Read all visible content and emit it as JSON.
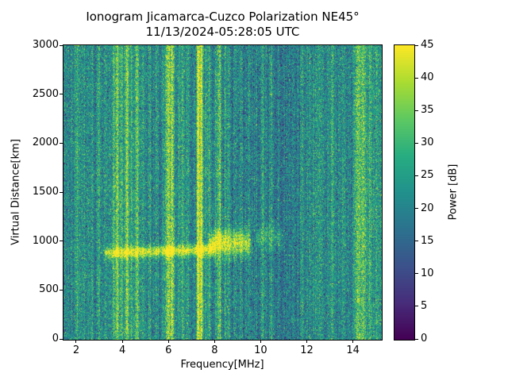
{
  "chart_data": {
    "type": "heatmap",
    "title": "Ionogram Jicamarca-Cuzco Polarization NE45°",
    "subtitle": "11/13/2024-05:28:05 UTC",
    "xlabel": "Frequency[MHz]",
    "ylabel": "Virtual Distance[km]",
    "colorbar_label": "Power [dB]",
    "xlim": [
      1.45,
      15.25
    ],
    "ylim": [
      0,
      3000
    ],
    "clim": [
      0,
      45
    ],
    "xticks": [
      2,
      4,
      6,
      8,
      10,
      12,
      14
    ],
    "yticks": [
      0,
      500,
      1000,
      1500,
      2000,
      2500,
      3000
    ],
    "colorbar_ticks": [
      0,
      5,
      10,
      15,
      20,
      25,
      30,
      35,
      40,
      45
    ],
    "colormap": "viridis",
    "colormap_stops": [
      "#440154",
      "#472d7b",
      "#3b528b",
      "#2c728e",
      "#21918c",
      "#27ad81",
      "#5ec962",
      "#aadc32",
      "#fde725"
    ],
    "background": {
      "mean_db": 20,
      "noise_std_db": 6,
      "column_jitter_db": 3.2
    },
    "rfi_lines": [
      {
        "freq_mhz": 2.05,
        "width_mhz": 0.05,
        "excess_db": 7
      },
      {
        "freq_mhz": 2.35,
        "width_mhz": 0.04,
        "excess_db": 4
      },
      {
        "freq_mhz": 2.7,
        "width_mhz": 0.04,
        "excess_db": 4
      },
      {
        "freq_mhz": 3.0,
        "width_mhz": 0.05,
        "excess_db": 6
      },
      {
        "freq_mhz": 3.3,
        "width_mhz": 0.04,
        "excess_db": 5
      },
      {
        "freq_mhz": 3.62,
        "width_mhz": 0.04,
        "excess_db": 8
      },
      {
        "freq_mhz": 3.78,
        "width_mhz": 0.06,
        "excess_db": 15
      },
      {
        "freq_mhz": 3.97,
        "width_mhz": 0.04,
        "excess_db": 9
      },
      {
        "freq_mhz": 4.2,
        "width_mhz": 0.06,
        "excess_db": 14
      },
      {
        "freq_mhz": 4.42,
        "width_mhz": 0.04,
        "excess_db": 7
      },
      {
        "freq_mhz": 4.65,
        "width_mhz": 0.05,
        "excess_db": 11
      },
      {
        "freq_mhz": 4.9,
        "width_mhz": 0.04,
        "excess_db": 6
      },
      {
        "freq_mhz": 5.2,
        "width_mhz": 0.04,
        "excess_db": 5
      },
      {
        "freq_mhz": 5.5,
        "width_mhz": 0.04,
        "excess_db": 5
      },
      {
        "freq_mhz": 5.75,
        "width_mhz": 0.04,
        "excess_db": 6
      },
      {
        "freq_mhz": 5.97,
        "width_mhz": 0.07,
        "excess_db": 18
      },
      {
        "freq_mhz": 6.17,
        "width_mhz": 0.07,
        "excess_db": 20
      },
      {
        "freq_mhz": 6.45,
        "width_mhz": 0.04,
        "excess_db": 6
      },
      {
        "freq_mhz": 6.62,
        "width_mhz": 0.05,
        "excess_db": 10
      },
      {
        "freq_mhz": 6.85,
        "width_mhz": 0.04,
        "excess_db": 5
      },
      {
        "freq_mhz": 7.3,
        "width_mhz": 0.05,
        "excess_db": 26
      },
      {
        "freq_mhz": 7.44,
        "width_mhz": 0.04,
        "excess_db": 22
      },
      {
        "freq_mhz": 7.62,
        "width_mhz": 0.04,
        "excess_db": 8
      },
      {
        "freq_mhz": 7.78,
        "width_mhz": 0.04,
        "excess_db": 9
      },
      {
        "freq_mhz": 8.05,
        "width_mhz": 0.04,
        "excess_db": 8
      },
      {
        "freq_mhz": 8.22,
        "width_mhz": 0.06,
        "excess_db": 16
      },
      {
        "freq_mhz": 8.45,
        "width_mhz": 0.04,
        "excess_db": 9
      },
      {
        "freq_mhz": 8.6,
        "width_mhz": 0.05,
        "excess_db": 10
      },
      {
        "freq_mhz": 8.9,
        "width_mhz": 0.04,
        "excess_db": 6
      },
      {
        "freq_mhz": 9.15,
        "width_mhz": 0.04,
        "excess_db": 5
      },
      {
        "freq_mhz": 9.5,
        "width_mhz": 0.04,
        "excess_db": 4
      },
      {
        "freq_mhz": 10.1,
        "width_mhz": 0.05,
        "excess_db": 5
      },
      {
        "freq_mhz": 10.45,
        "width_mhz": 0.05,
        "excess_db": 6
      },
      {
        "freq_mhz": 10.8,
        "width_mhz": 0.04,
        "excess_db": 4
      },
      {
        "freq_mhz": 11.25,
        "width_mhz": 0.04,
        "excess_db": 4
      },
      {
        "freq_mhz": 11.8,
        "width_mhz": 0.05,
        "excess_db": 5
      },
      {
        "freq_mhz": 12.15,
        "width_mhz": 0.04,
        "excess_db": 4
      },
      {
        "freq_mhz": 12.55,
        "width_mhz": 0.04,
        "excess_db": 4
      },
      {
        "freq_mhz": 13.1,
        "width_mhz": 0.05,
        "excess_db": 6
      },
      {
        "freq_mhz": 13.6,
        "width_mhz": 0.05,
        "excess_db": 6
      },
      {
        "freq_mhz": 14.2,
        "width_mhz": 0.09,
        "excess_db": 12
      },
      {
        "freq_mhz": 14.45,
        "width_mhz": 0.1,
        "excess_db": 13
      },
      {
        "freq_mhz": 14.75,
        "width_mhz": 0.05,
        "excess_db": 7
      },
      {
        "freq_mhz": 15.05,
        "width_mhz": 0.04,
        "excess_db": 5
      }
    ],
    "echoes": [
      {
        "f_start_mhz": 3.35,
        "f_end_mhz": 7.9,
        "alt_km": 885,
        "alt_end_km": 915,
        "halfwidth_km": 55,
        "excess_db": 21
      },
      {
        "f_start_mhz": 7.9,
        "f_end_mhz": 9.45,
        "alt_km": 985,
        "alt_end_km": 985,
        "halfwidth_km": 120,
        "excess_db": 22
      },
      {
        "f_start_mhz": 9.9,
        "f_end_mhz": 10.9,
        "alt_km": 1040,
        "alt_end_km": 1040,
        "halfwidth_km": 100,
        "excess_db": 7
      }
    ]
  }
}
